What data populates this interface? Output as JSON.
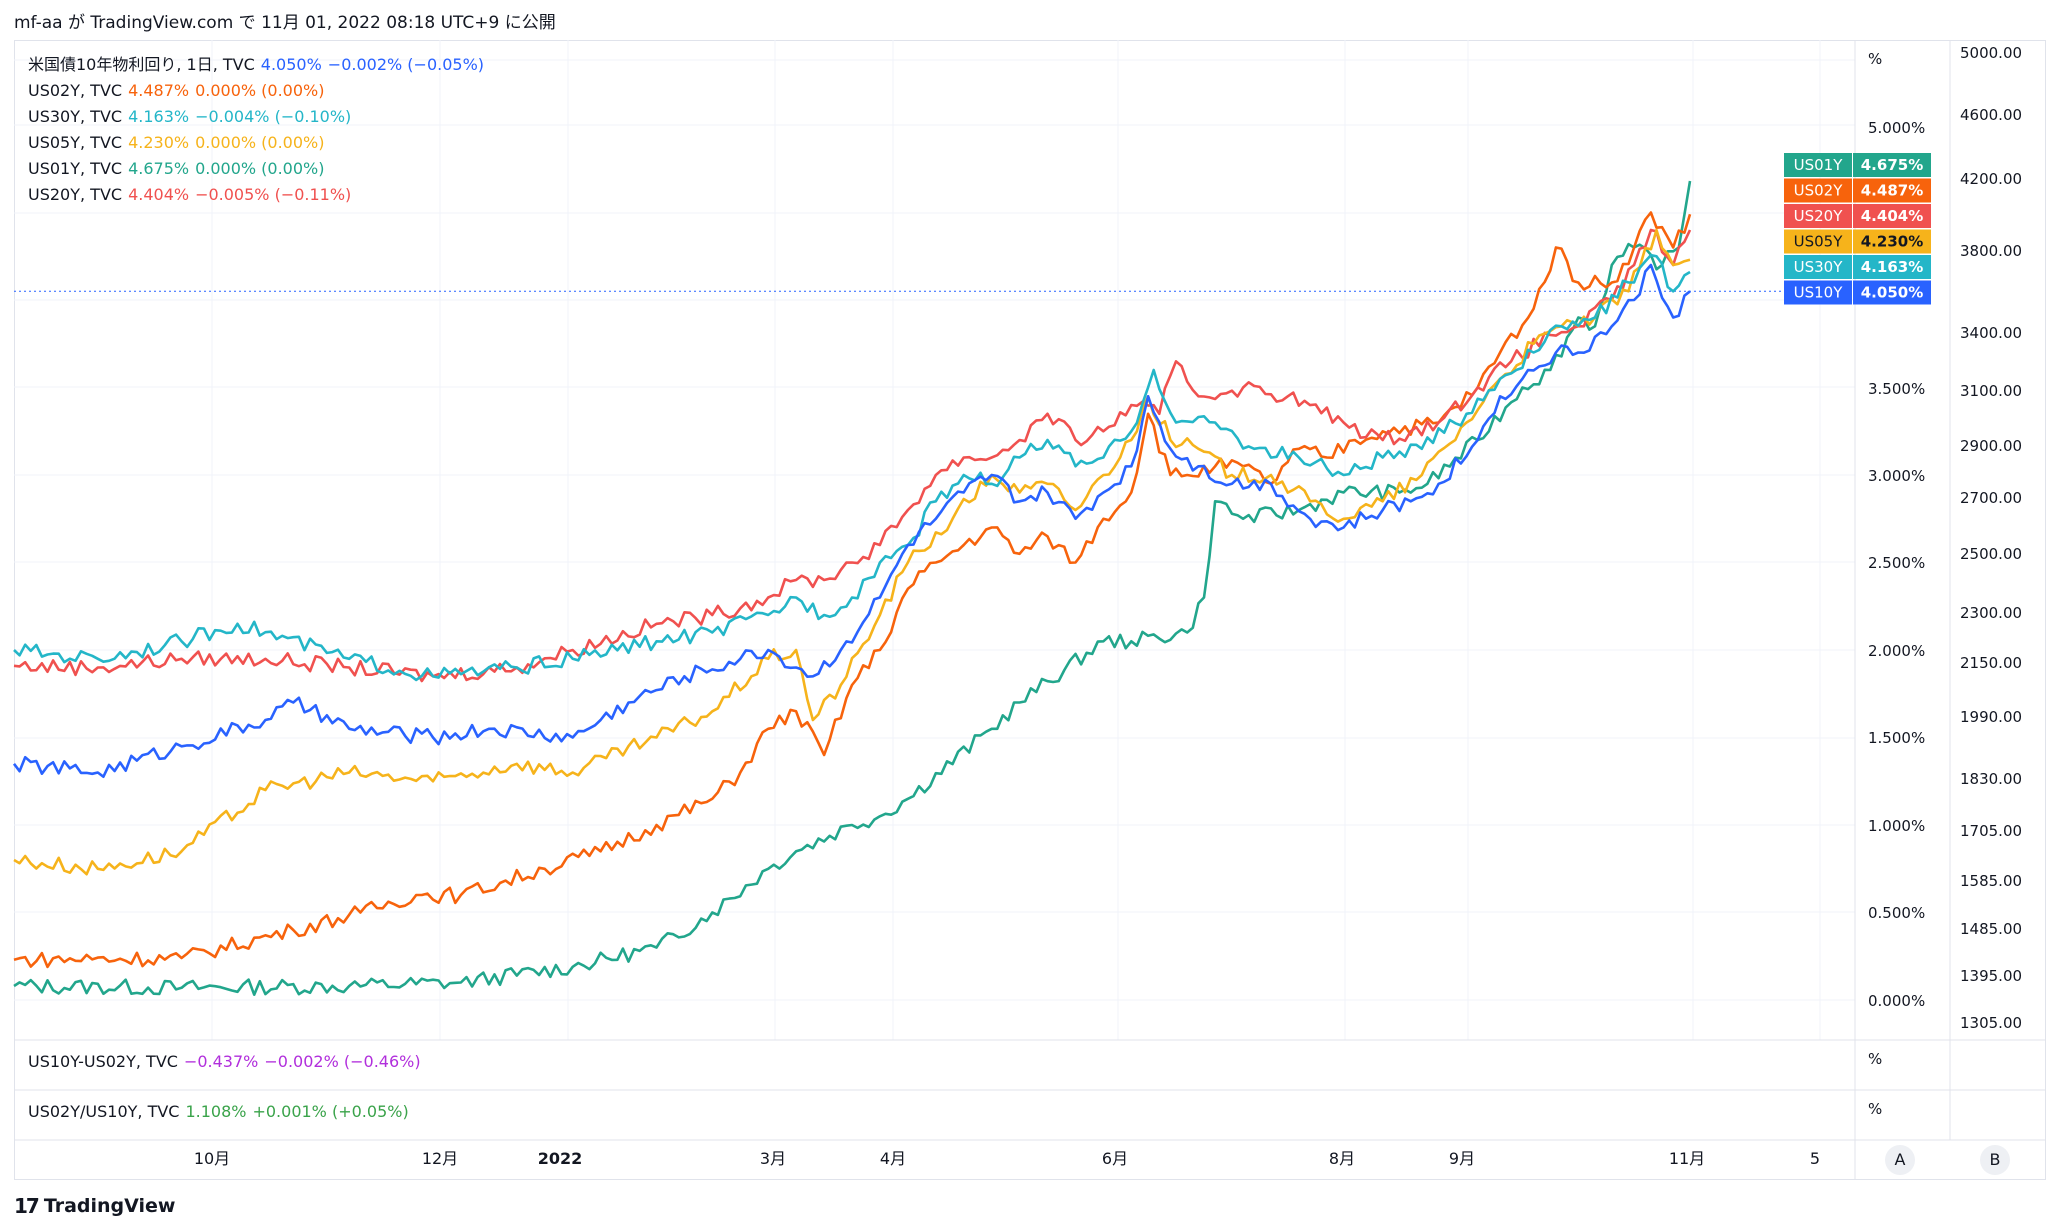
{
  "attribution": "mf-aa が TradingView.com で 11月 01, 2022 08:18 UTC+9 に公開",
  "footer": {
    "logo_mark": "17",
    "brand": "TradingView"
  },
  "legend": [
    {
      "label": "米国債10年物利回り, 1日, TVC",
      "value": "4.050%",
      "change": "−0.002% (−0.05%)",
      "color": "#2962ff"
    },
    {
      "label": "US02Y, TVC",
      "value": "4.487%",
      "change": "0.000% (0.00%)",
      "color": "#f7630c"
    },
    {
      "label": "US30Y, TVC",
      "value": "4.163%",
      "change": "−0.004% (−0.10%)",
      "color": "#24b6c8"
    },
    {
      "label": "US05Y, TVC",
      "value": "4.230%",
      "change": "0.000% (0.00%)",
      "color": "#f6b31b"
    },
    {
      "label": "US01Y, TVC",
      "value": "4.675%",
      "change": "0.000% (0.00%)",
      "color": "#22a68c"
    },
    {
      "label": "US20Y, TVC",
      "value": "4.404%",
      "change": "−0.005% (−0.11%)",
      "color": "#f0514f"
    }
  ],
  "pane2": {
    "label": "US10Y-US02Y, TVC",
    "value": "−0.437%",
    "change": "−0.002% (−0.46%)",
    "color": "#b12fdc",
    "unit": "%"
  },
  "pane3": {
    "label": "US02Y/US10Y, TVC",
    "value": "1.108%",
    "change": "+0.001% (+0.05%)",
    "color": "#3aa34a",
    "unit": "%"
  },
  "main_unit": "%",
  "scale_buttons": [
    "A",
    "B"
  ],
  "chart_data": {
    "type": "line",
    "x_tick_labels": [
      "10月",
      "12月",
      "2022",
      "3月",
      "4月",
      "6月",
      "8月",
      "9月",
      "11月",
      "5"
    ],
    "y_left_ticks": [
      "5.000%",
      "3.500%",
      "3.000%",
      "2.500%",
      "2.000%",
      "1.500%",
      "1.000%",
      "0.500%",
      "0.000%"
    ],
    "y_left_range": [
      -0.1,
      5.5
    ],
    "y_right_ticks": [
      "5000.00",
      "4600.00",
      "4200.00",
      "3800.00",
      "3400.00",
      "3100.00",
      "2900.00",
      "2700.00",
      "2500.00",
      "2300.00",
      "2150.00",
      "1990.00",
      "1830.00",
      "1705.00",
      "1585.00",
      "1485.00",
      "1395.00",
      "1305.00"
    ],
    "last_value_line": 4.05,
    "series": [
      {
        "name": "US01Y",
        "label": "US01Y",
        "value_text": "4.675%",
        "color": "#22a68c",
        "points": [
          [
            0,
            0.08
          ],
          [
            30,
            0.07
          ],
          [
            60,
            0.08
          ],
          [
            80,
            0.1
          ],
          [
            100,
            0.19
          ],
          [
            115,
            0.3
          ],
          [
            125,
            0.5
          ],
          [
            135,
            0.75
          ],
          [
            140,
            0.85
          ],
          [
            150,
            1.0
          ],
          [
            155,
            1.05
          ],
          [
            160,
            1.15
          ],
          [
            175,
            1.55
          ],
          [
            180,
            1.7
          ],
          [
            195,
            2.05
          ],
          [
            200,
            2.05
          ],
          [
            210,
            2.1
          ],
          [
            213,
            2.3
          ],
          [
            215,
            2.85
          ],
          [
            220,
            2.75
          ],
          [
            230,
            2.8
          ],
          [
            238,
            2.9
          ],
          [
            248,
            2.9
          ],
          [
            253,
            2.95
          ],
          [
            262,
            3.2
          ],
          [
            270,
            3.5
          ],
          [
            275,
            3.6
          ],
          [
            280,
            3.9
          ],
          [
            283,
            3.85
          ],
          [
            286,
            4.2
          ],
          [
            290,
            4.3
          ],
          [
            295,
            4.2
          ],
          [
            298,
            4.3
          ],
          [
            300,
            4.68
          ]
        ]
      },
      {
        "name": "US02Y",
        "label": "US02Y",
        "value_text": "4.487%",
        "color": "#f7630c",
        "points": [
          [
            0,
            0.23
          ],
          [
            30,
            0.24
          ],
          [
            50,
            0.4
          ],
          [
            62,
            0.5
          ],
          [
            72,
            0.6
          ],
          [
            80,
            0.6
          ],
          [
            95,
            0.75
          ],
          [
            105,
            0.85
          ],
          [
            115,
            1.0
          ],
          [
            125,
            1.15
          ],
          [
            130,
            1.3
          ],
          [
            135,
            1.55
          ],
          [
            140,
            1.65
          ],
          [
            145,
            1.4
          ],
          [
            150,
            1.8
          ],
          [
            155,
            2.0
          ],
          [
            160,
            2.35
          ],
          [
            165,
            2.5
          ],
          [
            170,
            2.6
          ],
          [
            175,
            2.7
          ],
          [
            180,
            2.55
          ],
          [
            185,
            2.65
          ],
          [
            190,
            2.5
          ],
          [
            195,
            2.75
          ],
          [
            200,
            2.9
          ],
          [
            203,
            3.35
          ],
          [
            207,
            3.0
          ],
          [
            210,
            3.0
          ],
          [
            215,
            3.05
          ],
          [
            220,
            3.05
          ],
          [
            225,
            2.95
          ],
          [
            230,
            3.15
          ],
          [
            235,
            3.1
          ],
          [
            240,
            3.2
          ],
          [
            245,
            3.25
          ],
          [
            255,
            3.3
          ],
          [
            262,
            3.5
          ],
          [
            266,
            3.7
          ],
          [
            272,
            3.95
          ],
          [
            276,
            4.3
          ],
          [
            280,
            4.1
          ],
          [
            286,
            4.1
          ],
          [
            290,
            4.3
          ],
          [
            293,
            4.5
          ],
          [
            297,
            4.3
          ],
          [
            300,
            4.49
          ]
        ]
      },
      {
        "name": "US20Y",
        "label": "US20Y",
        "value_text": "4.404%",
        "color": "#f0514f",
        "points": [
          [
            0,
            1.91
          ],
          [
            15,
            1.9
          ],
          [
            30,
            1.95
          ],
          [
            45,
            1.95
          ],
          [
            60,
            1.9
          ],
          [
            75,
            1.85
          ],
          [
            90,
            1.9
          ],
          [
            100,
            2.0
          ],
          [
            115,
            2.15
          ],
          [
            125,
            2.2
          ],
          [
            135,
            2.3
          ],
          [
            140,
            2.4
          ],
          [
            145,
            2.4
          ],
          [
            150,
            2.5
          ],
          [
            155,
            2.6
          ],
          [
            160,
            2.8
          ],
          [
            165,
            3.0
          ],
          [
            170,
            3.1
          ],
          [
            175,
            3.1
          ],
          [
            180,
            3.2
          ],
          [
            185,
            3.35
          ],
          [
            190,
            3.2
          ],
          [
            195,
            3.25
          ],
          [
            200,
            3.4
          ],
          [
            205,
            3.35
          ],
          [
            208,
            3.65
          ],
          [
            212,
            3.45
          ],
          [
            220,
            3.5
          ],
          [
            228,
            3.45
          ],
          [
            238,
            3.3
          ],
          [
            245,
            3.2
          ],
          [
            250,
            3.25
          ],
          [
            255,
            3.3
          ],
          [
            262,
            3.5
          ],
          [
            268,
            3.65
          ],
          [
            275,
            3.8
          ],
          [
            280,
            3.85
          ],
          [
            286,
            4.0
          ],
          [
            290,
            4.2
          ],
          [
            293,
            4.4
          ],
          [
            297,
            4.2
          ],
          [
            300,
            4.4
          ]
        ]
      },
      {
        "name": "US05Y",
        "label": "US05Y",
        "value_text": "4.230%",
        "color": "#f6b31b",
        "points": [
          [
            0,
            0.8
          ],
          [
            15,
            0.75
          ],
          [
            30,
            0.85
          ],
          [
            45,
            1.2
          ],
          [
            60,
            1.3
          ],
          [
            75,
            1.25
          ],
          [
            90,
            1.35
          ],
          [
            100,
            1.3
          ],
          [
            115,
            1.5
          ],
          [
            125,
            1.65
          ],
          [
            135,
            1.95
          ],
          [
            140,
            2.0
          ],
          [
            143,
            1.6
          ],
          [
            148,
            1.8
          ],
          [
            155,
            2.2
          ],
          [
            160,
            2.5
          ],
          [
            168,
            2.75
          ],
          [
            175,
            3.0
          ],
          [
            180,
            2.9
          ],
          [
            185,
            2.95
          ],
          [
            190,
            2.8
          ],
          [
            195,
            3.0
          ],
          [
            200,
            3.2
          ],
          [
            203,
            3.45
          ],
          [
            207,
            3.2
          ],
          [
            212,
            3.15
          ],
          [
            218,
            3.0
          ],
          [
            225,
            3.0
          ],
          [
            232,
            2.85
          ],
          [
            238,
            2.75
          ],
          [
            245,
            2.85
          ],
          [
            252,
            3.0
          ],
          [
            260,
            3.3
          ],
          [
            266,
            3.55
          ],
          [
            272,
            3.75
          ],
          [
            277,
            3.85
          ],
          [
            283,
            3.9
          ],
          [
            289,
            4.05
          ],
          [
            294,
            4.4
          ],
          [
            297,
            4.2
          ],
          [
            300,
            4.23
          ]
        ]
      },
      {
        "name": "US30Y",
        "label": "US30Y",
        "value_text": "4.163%",
        "color": "#24b6c8",
        "points": [
          [
            0,
            2.0
          ],
          [
            15,
            1.95
          ],
          [
            30,
            2.05
          ],
          [
            40,
            2.15
          ],
          [
            60,
            1.95
          ],
          [
            75,
            1.85
          ],
          [
            90,
            1.9
          ],
          [
            100,
            1.95
          ],
          [
            115,
            2.05
          ],
          [
            125,
            2.1
          ],
          [
            135,
            2.2
          ],
          [
            140,
            2.3
          ],
          [
            145,
            2.2
          ],
          [
            150,
            2.3
          ],
          [
            155,
            2.5
          ],
          [
            160,
            2.6
          ],
          [
            165,
            2.85
          ],
          [
            170,
            3.0
          ],
          [
            175,
            2.95
          ],
          [
            180,
            3.1
          ],
          [
            185,
            3.2
          ],
          [
            190,
            3.05
          ],
          [
            195,
            3.1
          ],
          [
            200,
            3.25
          ],
          [
            204,
            3.6
          ],
          [
            208,
            3.3
          ],
          [
            215,
            3.3
          ],
          [
            222,
            3.15
          ],
          [
            230,
            3.1
          ],
          [
            238,
            3.0
          ],
          [
            245,
            3.1
          ],
          [
            252,
            3.15
          ],
          [
            260,
            3.35
          ],
          [
            266,
            3.55
          ],
          [
            272,
            3.7
          ],
          [
            277,
            3.85
          ],
          [
            283,
            3.9
          ],
          [
            289,
            4.1
          ],
          [
            294,
            4.25
          ],
          [
            297,
            4.05
          ],
          [
            300,
            4.16
          ]
        ]
      },
      {
        "name": "US10Y",
        "label": "US10Y",
        "value_text": "4.050%",
        "color": "#2962ff",
        "points": [
          [
            0,
            1.35
          ],
          [
            15,
            1.3
          ],
          [
            30,
            1.45
          ],
          [
            45,
            1.6
          ],
          [
            50,
            1.7
          ],
          [
            60,
            1.55
          ],
          [
            75,
            1.5
          ],
          [
            85,
            1.55
          ],
          [
            100,
            1.5
          ],
          [
            110,
            1.7
          ],
          [
            120,
            1.85
          ],
          [
            130,
            1.95
          ],
          [
            135,
            2.0
          ],
          [
            140,
            1.9
          ],
          [
            143,
            1.85
          ],
          [
            148,
            2.0
          ],
          [
            155,
            2.3
          ],
          [
            160,
            2.6
          ],
          [
            165,
            2.75
          ],
          [
            170,
            2.9
          ],
          [
            175,
            3.0
          ],
          [
            180,
            2.85
          ],
          [
            185,
            2.9
          ],
          [
            190,
            2.75
          ],
          [
            195,
            2.9
          ],
          [
            200,
            3.05
          ],
          [
            203,
            3.45
          ],
          [
            207,
            3.15
          ],
          [
            212,
            3.05
          ],
          [
            218,
            2.95
          ],
          [
            225,
            2.95
          ],
          [
            232,
            2.75
          ],
          [
            238,
            2.7
          ],
          [
            245,
            2.8
          ],
          [
            250,
            2.85
          ],
          [
            255,
            2.95
          ],
          [
            262,
            3.2
          ],
          [
            266,
            3.45
          ],
          [
            270,
            3.55
          ],
          [
            276,
            3.7
          ],
          [
            280,
            3.7
          ],
          [
            286,
            3.85
          ],
          [
            290,
            4.0
          ],
          [
            293,
            4.2
          ],
          [
            297,
            3.9
          ],
          [
            300,
            4.05
          ]
        ]
      }
    ]
  }
}
